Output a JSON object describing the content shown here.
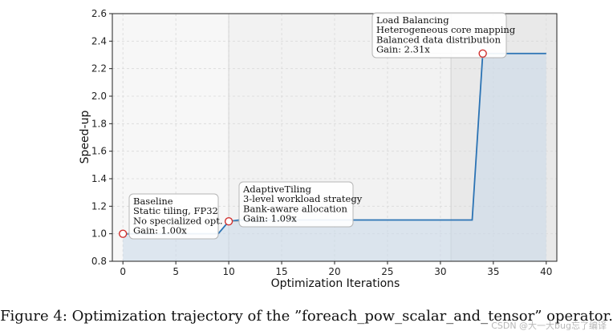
{
  "chart_data": {
    "type": "line",
    "title": "",
    "xlabel": "Optimization Iterations",
    "ylabel": "Speed-up",
    "xlim": [
      -1,
      41
    ],
    "ylim": [
      0.8,
      2.6
    ],
    "xticks": [
      0,
      5,
      10,
      15,
      20,
      25,
      30,
      35,
      40
    ],
    "yticks": [
      0.8,
      1.0,
      1.2,
      1.4,
      1.6,
      1.8,
      2.0,
      2.2,
      2.4,
      2.6
    ],
    "grid": true,
    "legend": "none",
    "series": [
      {
        "x": [
          0,
          1,
          2,
          3,
          4,
          5,
          6,
          7,
          8,
          9,
          10,
          11,
          12,
          13,
          14,
          15,
          16,
          17,
          18,
          19,
          20,
          21,
          22,
          23,
          24,
          25,
          26,
          27,
          28,
          29,
          30,
          31,
          32,
          33,
          34,
          35,
          36,
          37,
          38,
          39,
          40
        ],
        "values": [
          1.0,
          1.0,
          1.0,
          1.0,
          1.0,
          1.0,
          1.0,
          1.0,
          1.0,
          1.0,
          1.09,
          1.1,
          1.1,
          1.1,
          1.1,
          1.1,
          1.1,
          1.1,
          1.1,
          1.1,
          1.1,
          1.1,
          1.1,
          1.1,
          1.1,
          1.1,
          1.1,
          1.1,
          1.1,
          1.1,
          1.1,
          1.1,
          1.1,
          1.1,
          2.31,
          2.31,
          2.31,
          2.31,
          2.31,
          2.31,
          2.31
        ]
      }
    ],
    "phase_regions": [
      {
        "x_start": -1,
        "x_end": 10,
        "shade": "#f7f7f7"
      },
      {
        "x_start": 10,
        "x_end": 31,
        "shade": "#f2f2f2"
      },
      {
        "x_start": 31,
        "x_end": 41,
        "shade": "#e9e9e9"
      }
    ],
    "annotations": [
      {
        "x": 0,
        "y": 1.0,
        "lines": [
          "Baseline",
          "Static tiling, FP32",
          "No specialized opt.",
          "Gain: 1.00x"
        ]
      },
      {
        "x": 10,
        "y": 1.09,
        "lines": [
          "AdaptiveTiling",
          "3-level workload strategy",
          "Bank-aware allocation",
          "Gain: 1.09x"
        ]
      },
      {
        "x": 34,
        "y": 2.31,
        "lines": [
          "Load Balancing",
          "Heterogeneous core mapping",
          "Balanced data distribution",
          "Gain: 2.31x"
        ]
      }
    ],
    "colors": {
      "line": "#2b73b4",
      "fill": "#c9d8ea",
      "marker_edge": "#d1312f",
      "grid": "#d9d9d9"
    }
  },
  "caption": "Figure 4: Optimization trajectory of the ”foreach_pow_scalar_and_tensor” operator.",
  "watermark": "CSDN @大一大bug忘了编译"
}
